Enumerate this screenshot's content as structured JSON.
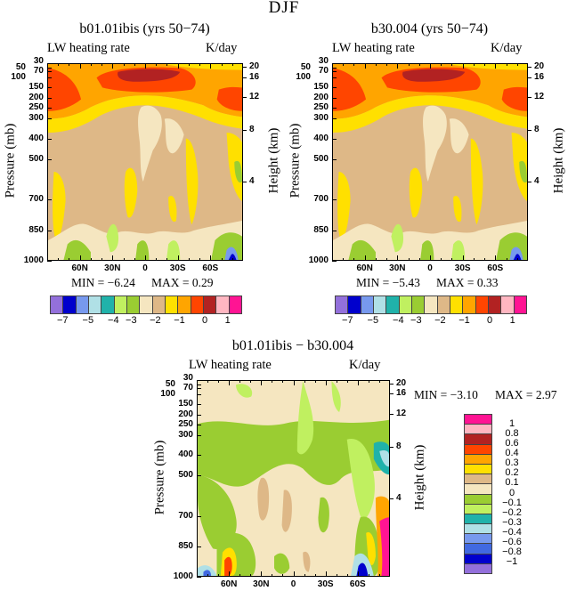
{
  "title": "DJF",
  "chart_data": [
    {
      "type": "contour",
      "title": "b01.01ibis (yrs 50−74)",
      "left_label": "LW heating rate",
      "right_label": "K/day",
      "ylabel": "Pressure (mb)",
      "ylabel_right": "Height (km)",
      "x_ticks": [
        "60N",
        "30N",
        "0",
        "30S",
        "60S"
      ],
      "y_ticks": [
        "30",
        "50",
        "70",
        "100",
        "150",
        "200",
        "250",
        "300",
        "400",
        "500",
        "700",
        "850",
        "1000"
      ],
      "y_right_ticks": [
        "20",
        "16",
        "12",
        "8",
        "4"
      ],
      "min_text": "MIN  =   −6.24",
      "max_text": "MAX  =    0.29",
      "colorbar_labels": [
        "−7",
        "−5",
        "−4",
        "−3",
        "−2",
        "−1",
        "0",
        "1"
      ]
    },
    {
      "type": "contour",
      "title": "b30.004 (yrs 50−74)",
      "left_label": "LW heating rate",
      "right_label": "K/day",
      "ylabel": "Pressure (mb)",
      "ylabel_right": "Height (km)",
      "x_ticks": [
        "60N",
        "30N",
        "0",
        "30S",
        "60S"
      ],
      "y_ticks": [
        "30",
        "50",
        "70",
        "100",
        "150",
        "200",
        "250",
        "300",
        "400",
        "500",
        "700",
        "850",
        "1000"
      ],
      "y_right_ticks": [
        "20",
        "16",
        "12",
        "8",
        "4"
      ],
      "min_text": "MIN  =   −5.43",
      "max_text": "MAX  =    0.33",
      "colorbar_labels": [
        "−7",
        "−5",
        "−4",
        "−3",
        "−2",
        "−1",
        "0",
        "1"
      ]
    },
    {
      "type": "contour",
      "title": "b01.01ibis − b30.004",
      "left_label": "LW heating rate",
      "right_label": "K/day",
      "ylabel": "Pressure (mb)",
      "ylabel_right": "Height (km)",
      "x_ticks": [
        "60N",
        "30N",
        "0",
        "30S",
        "60S"
      ],
      "y_ticks": [
        "30",
        "50",
        "70",
        "100",
        "150",
        "200",
        "250",
        "300",
        "400",
        "500",
        "700",
        "850",
        "1000"
      ],
      "y_right_ticks": [
        "20",
        "16",
        "12",
        "8",
        "4"
      ],
      "min_text": "MIN  =   −3.10",
      "max_text": "MAX  =    2.97",
      "colorbar_labels": [
        "1",
        "0.8",
        "0.6",
        "0.4",
        "0.3",
        "0.2",
        "0.1",
        "0",
        "−0.1",
        "−0.2",
        "−0.3",
        "−0.4",
        "−0.6",
        "−0.8",
        "−1"
      ]
    }
  ],
  "colors": [
    "#9370DB",
    "#0000CD",
    "#4169E1",
    "#7799EE",
    "#B0E0E6",
    "#20B2AA",
    "#C0F060",
    "#9ACD32",
    "#F5E6C0",
    "#DEB887",
    "#FFE000",
    "#FFA500",
    "#FF4500",
    "#B22222",
    "#FFB6C1",
    "#FF1493"
  ]
}
